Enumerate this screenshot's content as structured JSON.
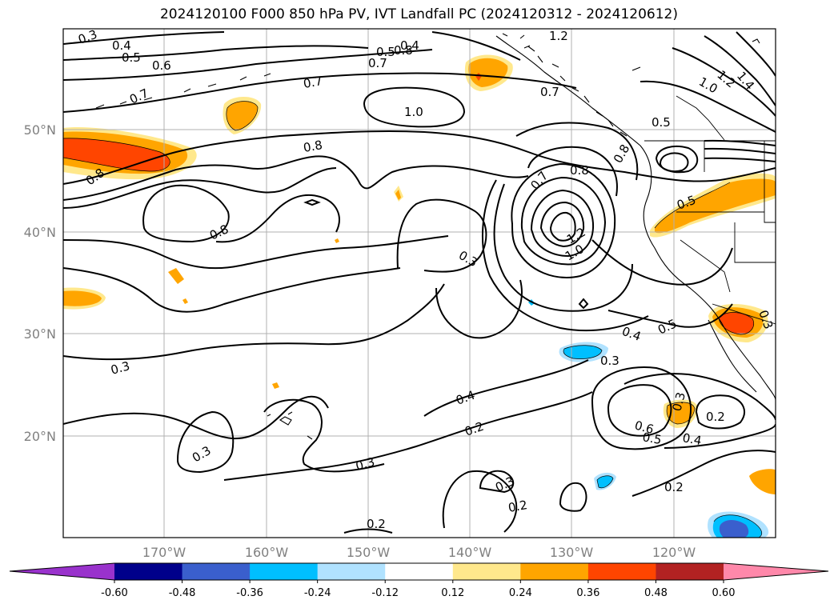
{
  "title": "2024120100 F000 850 hPa PV, IVT Landfall PC (2024120312 - 2024120612)",
  "axes": {
    "lat_labels": [
      "50°N",
      "40°N",
      "30°N",
      "20°N"
    ],
    "lon_labels": [
      "170°W",
      "160°W",
      "150°W",
      "140°W",
      "130°W",
      "120°W"
    ]
  },
  "contour_labels": [
    "0.3",
    "0.4",
    "0.5",
    "0.6",
    "0.7",
    "0.8",
    "0.5",
    "0.4",
    "1.2",
    "0.7",
    "1.0",
    "0.5",
    "1.2",
    "1.4",
    "1.0",
    "0.7",
    "0.8",
    "0.8",
    "0.8",
    "0.7",
    "0.8",
    "0.7",
    "0.5",
    "0.8",
    "0.3",
    "1.2",
    "1.0",
    "0.3",
    "0.4",
    "0.5",
    "0.3",
    "0.3",
    "0.4",
    "0.2",
    "0.3",
    "0.6",
    "0.5",
    "0.4",
    "0.3",
    "0.2",
    "0.3",
    "0.2",
    "0.2",
    "0.2",
    "0.3"
  ],
  "colorbar": {
    "ticks": [
      "-0.60",
      "-0.48",
      "-0.36",
      "-0.24",
      "-0.12",
      "0.12",
      "0.24",
      "0.36",
      "0.48",
      "0.60"
    ],
    "colors": [
      "#9932cc",
      "#00008b",
      "#3a5fcd",
      "#00bfff",
      "#b0e2ff",
      "#ffffff",
      "#ffe88c",
      "#ffa500",
      "#ff4500",
      "#b22222",
      "#ff88aa"
    ]
  }
}
